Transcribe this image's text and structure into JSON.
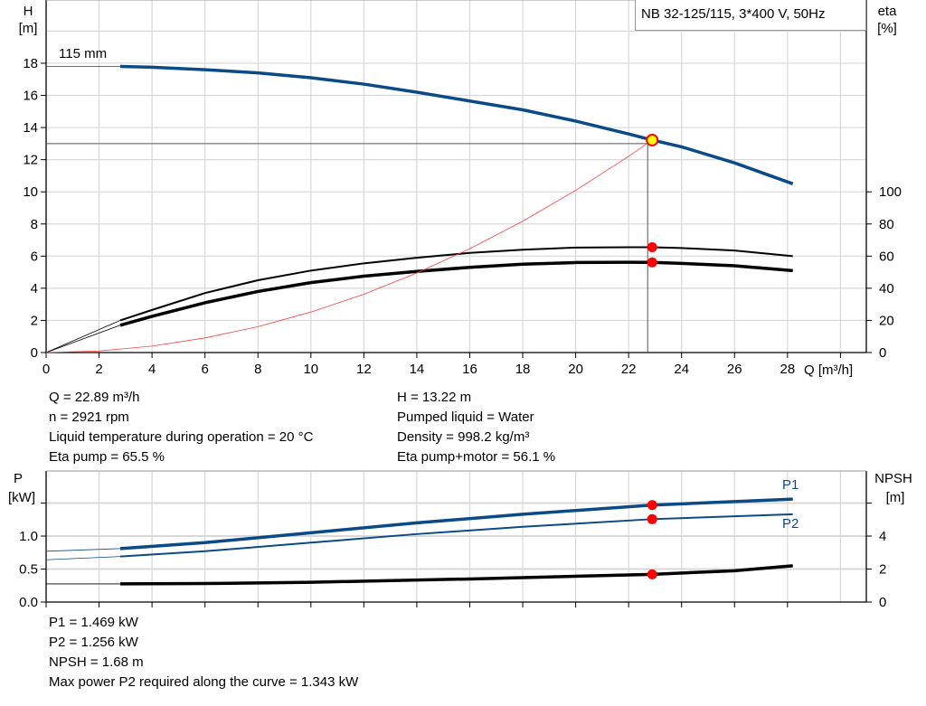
{
  "chart_data": [
    {
      "type": "line",
      "title": "NB 32-125/115, 3*400 V, 50Hz",
      "xlabel": "Q [m³/h]",
      "ylabel": "H [m]",
      "ylabel_top": "H",
      "ylabel_unit": "[m]",
      "y2label_top": "eta",
      "y2label_unit": "[%]",
      "xlim": [
        0,
        31
      ],
      "ylim": [
        0,
        22
      ],
      "y2lim": [
        0,
        220
      ],
      "xticks": [
        0,
        2,
        4,
        6,
        8,
        10,
        12,
        14,
        16,
        18,
        20,
        22,
        24,
        26,
        28
      ],
      "yticks": [
        0,
        2,
        4,
        6,
        8,
        10,
        12,
        14,
        16,
        18
      ],
      "y2ticks": [
        0,
        20,
        40,
        60,
        80,
        100
      ],
      "grid": true,
      "curve_label": "115 mm",
      "series": [
        {
          "key": "H",
          "axis": "left",
          "color": "#0a4a86",
          "x": [
            2.8,
            4,
            6,
            8,
            10,
            12,
            14,
            16,
            18,
            20,
            22,
            22.89,
            24,
            26,
            28.2
          ],
          "y": [
            17.8,
            17.75,
            17.6,
            17.4,
            17.1,
            16.7,
            16.2,
            15.65,
            15.1,
            14.4,
            13.6,
            13.22,
            12.8,
            11.8,
            10.5
          ],
          "extension": {
            "x": [
              0,
              2.8
            ],
            "y": [
              17.8,
              17.8
            ]
          }
        },
        {
          "key": "eta_pump",
          "axis": "right",
          "color": "#000000",
          "x": [
            2.8,
            4,
            6,
            8,
            10,
            12,
            14,
            16,
            18,
            20,
            22,
            22.89,
            24,
            26,
            28.2
          ],
          "y": [
            20,
            26.5,
            37,
            45,
            51,
            55.5,
            59,
            62,
            64,
            65.3,
            65.5,
            65.5,
            65,
            63.5,
            60
          ],
          "extension": {
            "x": [
              0,
              2.8
            ],
            "y": [
              0,
              20
            ]
          }
        },
        {
          "key": "eta_pump_motor",
          "axis": "right",
          "color": "#000000",
          "x": [
            2.8,
            4,
            6,
            8,
            10,
            12,
            14,
            16,
            18,
            20,
            22,
            22.89,
            24,
            26,
            28.2
          ],
          "y": [
            17,
            22.5,
            31,
            38,
            43.5,
            47.5,
            50.5,
            53,
            55,
            56,
            56.2,
            56.1,
            55.5,
            54,
            51
          ],
          "extension": {
            "x": [
              0,
              2.8
            ],
            "y": [
              0,
              17
            ]
          }
        },
        {
          "key": "system_curve",
          "axis": "left",
          "color": "#ff4040",
          "x": [
            0,
            2,
            4,
            6,
            8,
            10,
            12,
            14,
            16,
            18,
            20,
            22,
            22.89
          ],
          "y": [
            0,
            0.1,
            0.4,
            0.91,
            1.61,
            2.52,
            3.63,
            4.95,
            6.46,
            8.17,
            10.09,
            12.21,
            13.22
          ]
        }
      ],
      "duty_point": {
        "Q": 22.89,
        "H": 13.22,
        "eta_pump": 65.5,
        "eta_pump_motor": 56.1,
        "H_line": 13.0
      }
    },
    {
      "type": "line",
      "ylabel_top": "P",
      "ylabel_unit": "[kW]",
      "y2label_top": "NPSH",
      "y2label_unit": "[m]",
      "xlim": [
        0,
        31
      ],
      "ylim": [
        0,
        2
      ],
      "y2lim": [
        0,
        8
      ],
      "yticks": [
        0.0,
        0.5,
        1.0
      ],
      "yticklabels": [
        "0.0",
        "0.5",
        "1.0"
      ],
      "ygrid": [
        0.5,
        1.0,
        1.5
      ],
      "y2ticks": [
        0,
        2,
        4,
        6
      ],
      "y2ticklabels": [
        "0",
        "2",
        "4",
        ""
      ],
      "grid": true,
      "series": [
        {
          "key": "P1",
          "name": "P1",
          "axis": "left",
          "color": "#0a4a86",
          "x": [
            2.8,
            6,
            10,
            14,
            18,
            22.89,
            28.2
          ],
          "y": [
            0.81,
            0.9,
            1.05,
            1.2,
            1.33,
            1.469,
            1.56
          ],
          "extension": {
            "x": [
              0,
              2.8
            ],
            "y": [
              0.77,
              0.81
            ]
          }
        },
        {
          "key": "P2",
          "name": "P2",
          "axis": "left",
          "color": "#0a4a86",
          "x": [
            2.8,
            6,
            10,
            14,
            18,
            22.89,
            28.2
          ],
          "y": [
            0.69,
            0.77,
            0.9,
            1.03,
            1.14,
            1.256,
            1.33
          ],
          "extension": {
            "x": [
              0,
              2.8
            ],
            "y": [
              0.64,
              0.69
            ]
          }
        },
        {
          "key": "NPSH",
          "axis": "right",
          "color": "#000000",
          "x": [
            2.8,
            6,
            10,
            16,
            22.89,
            26,
            28.2
          ],
          "y": [
            1.1,
            1.12,
            1.2,
            1.4,
            1.68,
            1.9,
            2.2
          ],
          "extension": {
            "x": [
              0,
              2.8
            ],
            "y": [
              1.1,
              1.1
            ]
          }
        }
      ],
      "duty_point": {
        "Q": 22.89,
        "P1": 1.469,
        "P2": 1.256,
        "NPSH": 1.68
      }
    }
  ],
  "info_top": {
    "left": [
      "Q = 22.89 m³/h",
      "n = 2921 rpm",
      "Liquid temperature during operation = 20 °C",
      "Eta pump = 65.5 %"
    ],
    "right": [
      "H = 13.22 m",
      "Pumped liquid = Water",
      "Density = 998.2 kg/m³",
      "Eta pump+motor = 56.1 %"
    ]
  },
  "info_bottom": [
    "P1 = 1.469 kW",
    "P2 = 1.256 kW",
    "NPSH = 1.68 m",
    "Max power P2 required along the curve = 1.343 kW"
  ],
  "colors": {
    "curve_blue": "#0a4a86",
    "duty_marker": "#ff0000",
    "duty_fill_head": "#ffff00",
    "system_curve": "#ff4040",
    "grid": "#d8d8d8"
  }
}
